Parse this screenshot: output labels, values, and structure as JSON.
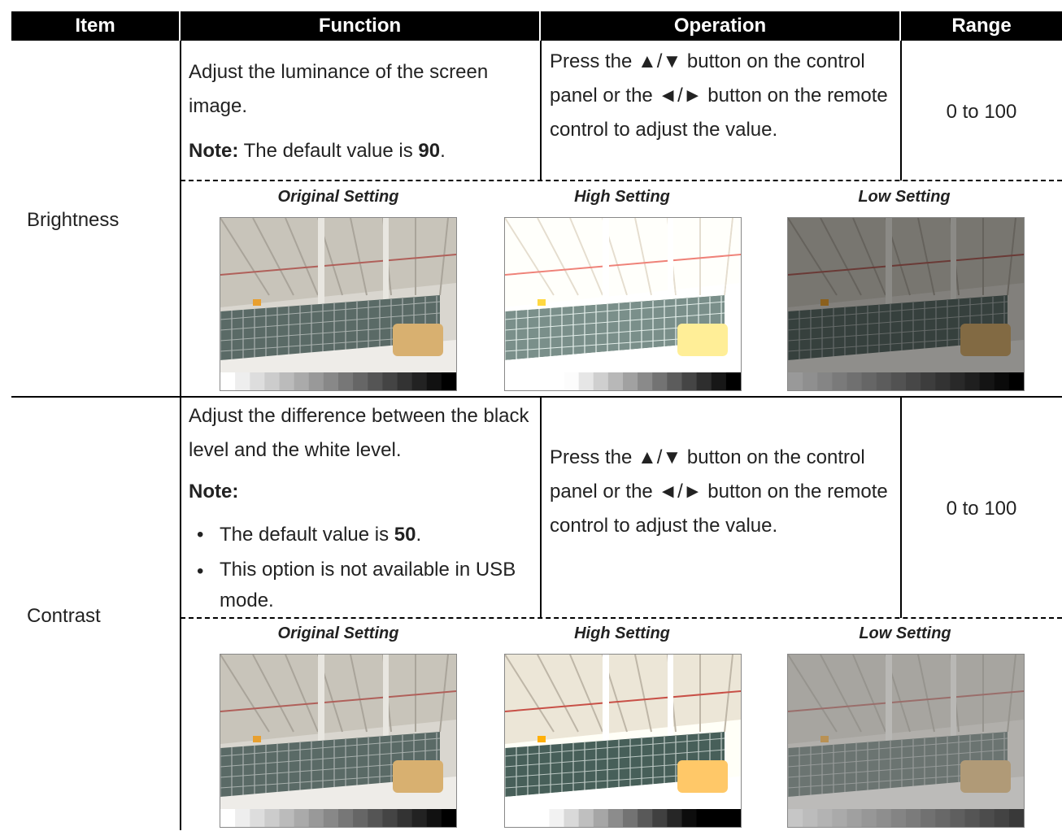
{
  "table": {
    "headers": [
      "Item",
      "Function",
      "Operation",
      "Range"
    ],
    "rows": [
      {
        "item": "Brightness",
        "function": {
          "text": "Adjust the luminance of the screen image.",
          "note_label": "Note:",
          "note_text": "The default value is ",
          "note_value": "90",
          "note_end": "."
        },
        "operation": "Press the ▲/▼ button on the control panel or the ◄/► button on the remote control to adjust the value.",
        "range": "0 to 100",
        "captions": [
          "Original Setting",
          "High Setting",
          "Low Setting"
        ]
      },
      {
        "item": "Contrast",
        "function": {
          "text": "Adjust the difference between the black level and the white level.",
          "note_label": "Note:",
          "bullets": [
            {
              "text": "The default value is ",
              "value": "50",
              "end": "."
            },
            {
              "text": "This option is not available in USB mode."
            }
          ]
        },
        "operation": "Press the ▲/▼ button on the control panel or the ◄/► button on the remote control to adjust the value.",
        "range": "0 to 100",
        "captions": [
          "Original Setting",
          "High Setting",
          "Low Setting"
        ]
      }
    ]
  }
}
